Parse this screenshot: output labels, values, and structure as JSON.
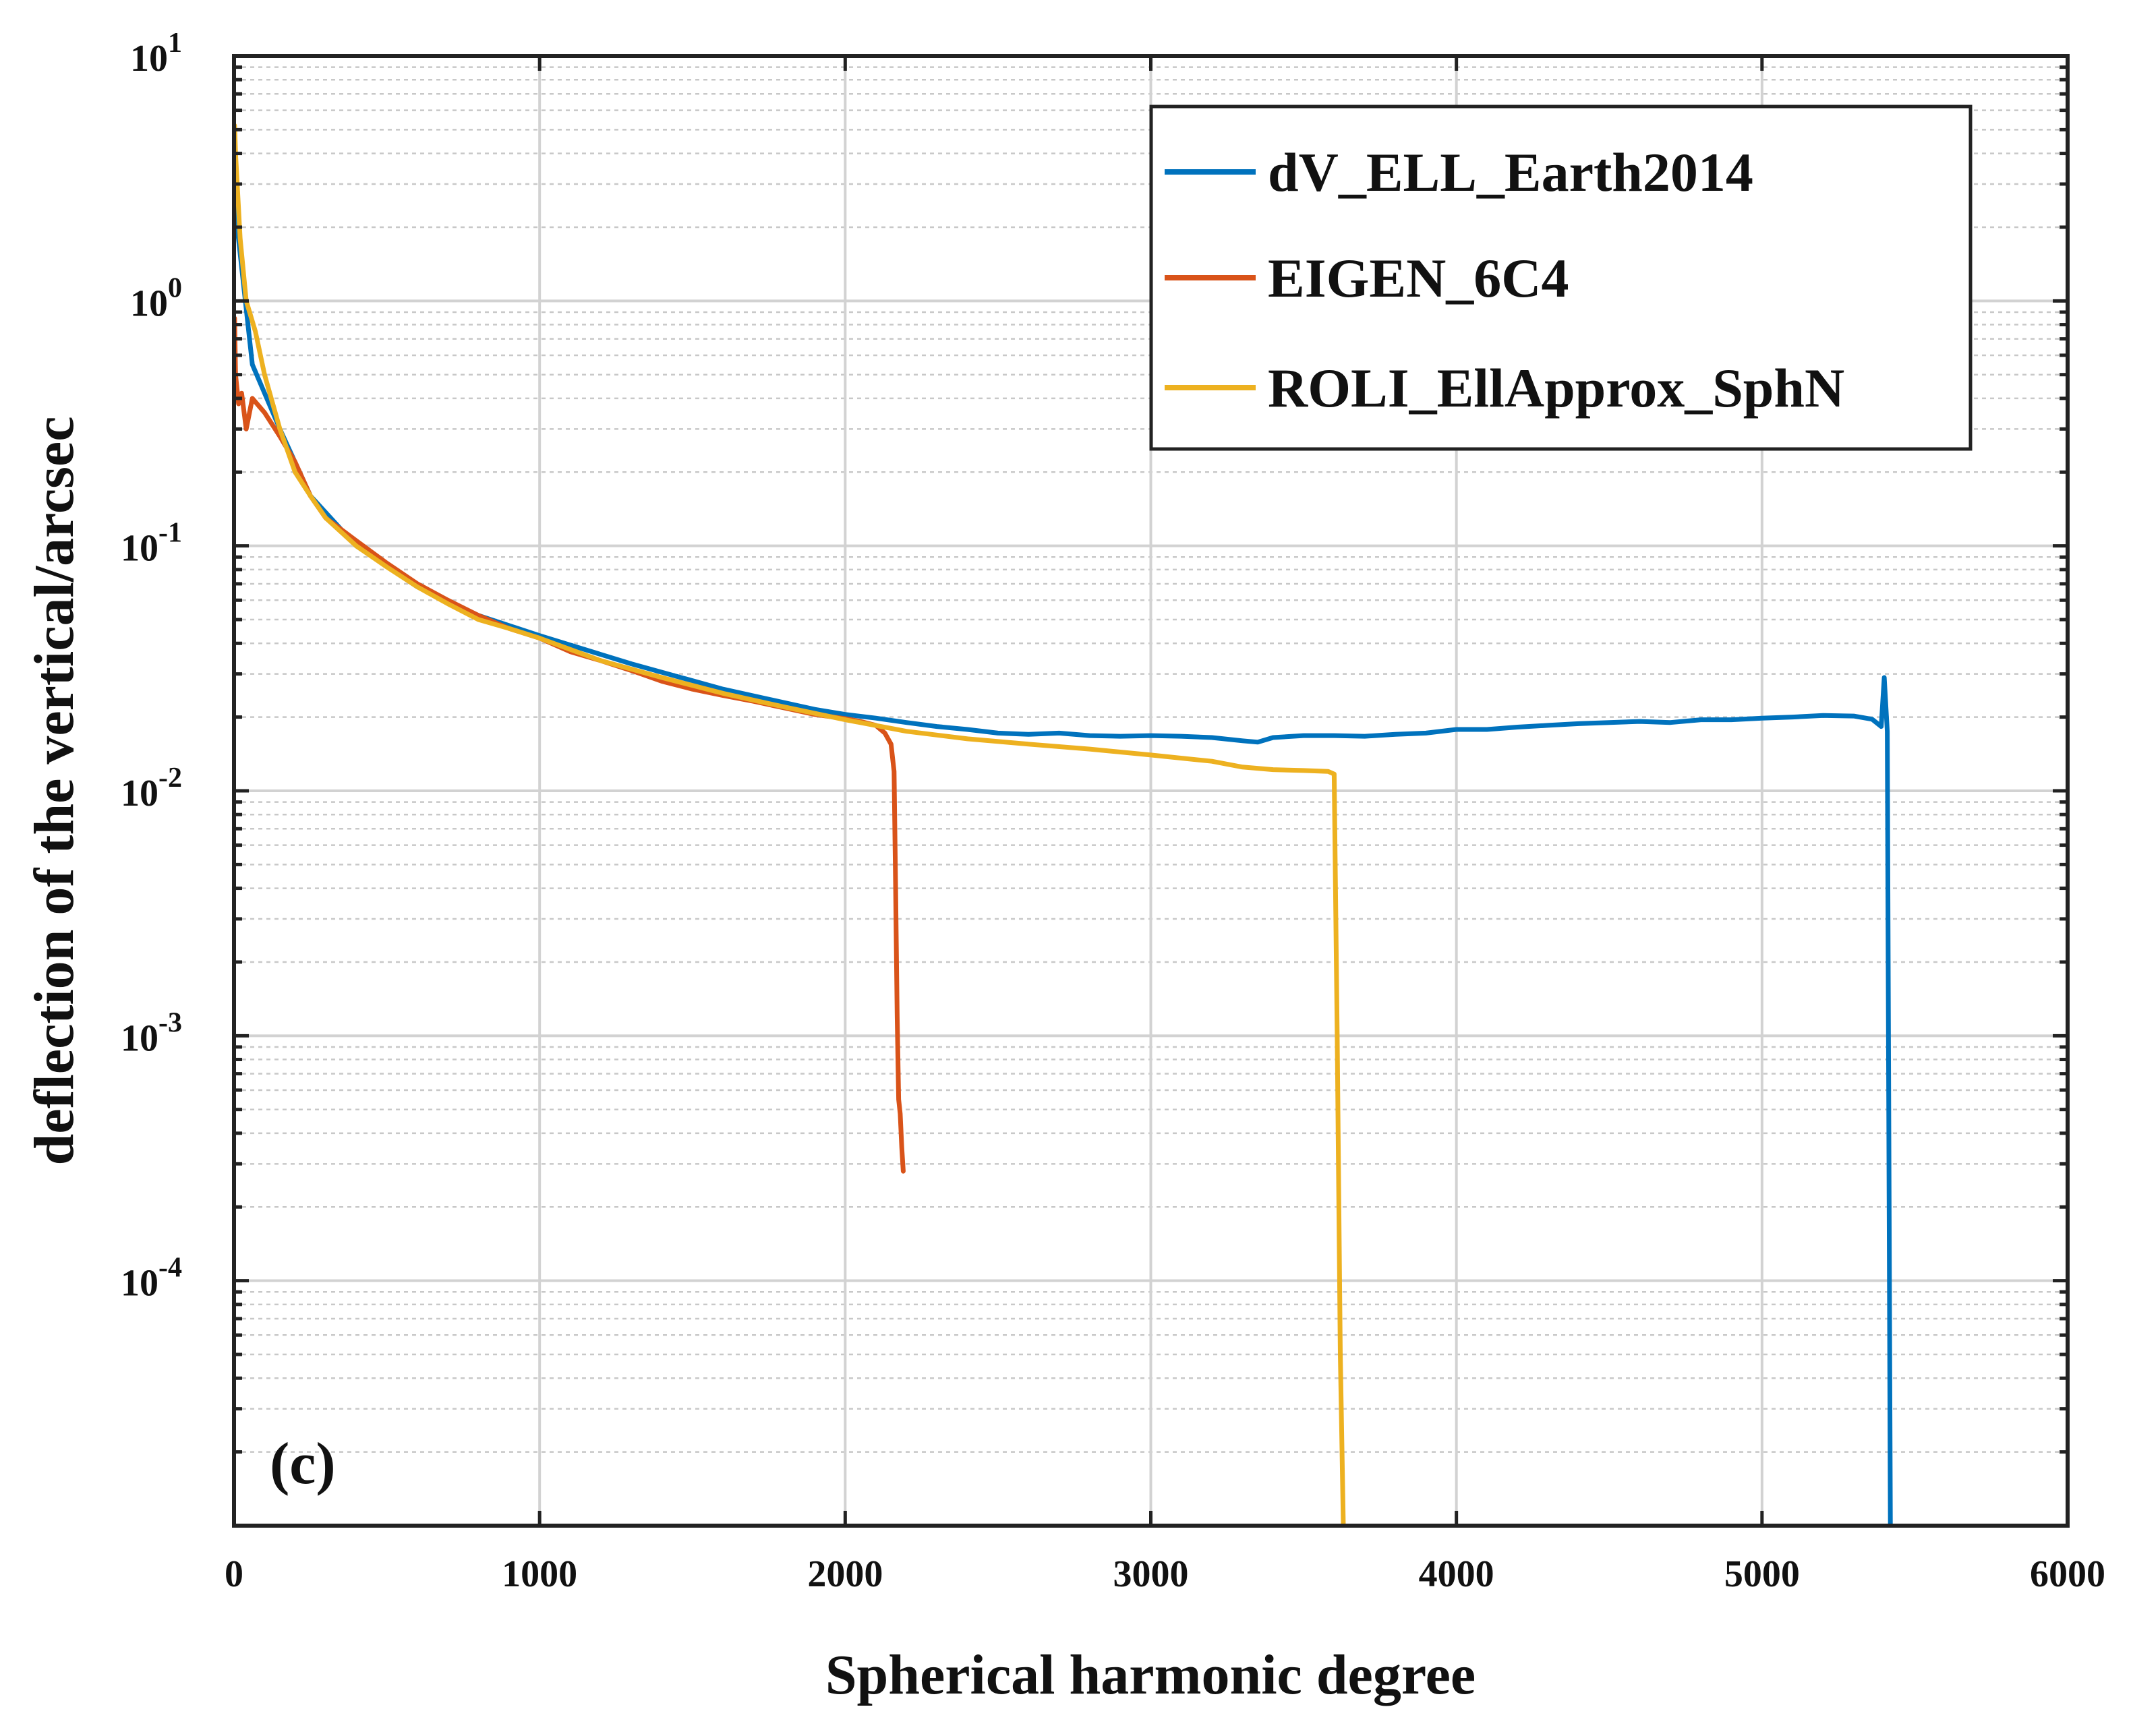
{
  "chart_data": {
    "type": "line",
    "title": "",
    "xlabel": "Spherical harmonic degree",
    "ylabel": "deflection of the vertical/arcsec",
    "xscale": "linear",
    "yscale": "log",
    "xlim": [
      0,
      6000
    ],
    "ylim": [
      1e-05,
      10
    ],
    "grid": true,
    "minor_grid": true,
    "legend_location": "top-right",
    "panel_label": "(c)",
    "x_ticks": [
      {
        "value": 0,
        "label": "0"
      },
      {
        "value": 1000,
        "label": "1000"
      },
      {
        "value": 2000,
        "label": "2000"
      },
      {
        "value": 3000,
        "label": "3000"
      },
      {
        "value": 4000,
        "label": "4000"
      },
      {
        "value": 5000,
        "label": "5000"
      },
      {
        "value": 6000,
        "label": "6000"
      }
    ],
    "y_ticks": [
      {
        "value": 10,
        "base": "10",
        "exp": "1"
      },
      {
        "value": 1,
        "base": "10",
        "exp": "0"
      },
      {
        "value": 0.1,
        "base": "10",
        "exp": "-1"
      },
      {
        "value": 0.01,
        "base": "10",
        "exp": "-2"
      },
      {
        "value": 0.001,
        "base": "10",
        "exp": "-3"
      },
      {
        "value": 0.0001,
        "base": "10",
        "exp": "-4"
      }
    ],
    "series": [
      {
        "name": "dV_ELL_Earth2014",
        "color": "#0072BD",
        "x": [
          2,
          60,
          150,
          250,
          400,
          600,
          800,
          1000,
          1300,
          1600,
          1900,
          2000,
          2100,
          2200,
          2300,
          2400,
          2500,
          2600,
          2700,
          2800,
          2900,
          3000,
          3100,
          3200,
          3300,
          3350,
          3400,
          3500,
          3600,
          3700,
          3800,
          3900,
          4000,
          4100,
          4200,
          4300,
          4400,
          4500,
          4600,
          4700,
          4800,
          4900,
          5000,
          5100,
          5200,
          5300,
          5360,
          5390,
          5400,
          5410,
          5420
        ],
        "y": [
          2.5,
          0.55,
          0.3,
          0.16,
          0.1,
          0.068,
          0.052,
          0.043,
          0.033,
          0.026,
          0.0215,
          0.0205,
          0.0198,
          0.019,
          0.0183,
          0.0178,
          0.0172,
          0.017,
          0.0172,
          0.0168,
          0.0167,
          0.0168,
          0.0167,
          0.0165,
          0.016,
          0.0158,
          0.0165,
          0.0168,
          0.0168,
          0.0167,
          0.017,
          0.0172,
          0.0178,
          0.0178,
          0.0182,
          0.0185,
          0.0188,
          0.019,
          0.0192,
          0.019,
          0.0195,
          0.0195,
          0.0198,
          0.02,
          0.0203,
          0.0202,
          0.0196,
          0.0183,
          0.029,
          0.0175,
          1e-05
        ]
      },
      {
        "name": "EIGEN_6C4",
        "color": "#D95319",
        "x": [
          2,
          5,
          15,
          25,
          40,
          60,
          100,
          150,
          200,
          250,
          300,
          400,
          500,
          600,
          700,
          800,
          900,
          1000,
          1100,
          1200,
          1300,
          1400,
          1500,
          1600,
          1700,
          1800,
          1900,
          2000,
          2050,
          2100,
          2130,
          2150,
          2160,
          2165,
          2170,
          2175,
          2180,
          2185,
          2190
        ],
        "y": [
          0.85,
          0.5,
          0.38,
          0.42,
          0.3,
          0.4,
          0.35,
          0.28,
          0.22,
          0.16,
          0.13,
          0.105,
          0.085,
          0.07,
          0.06,
          0.052,
          0.046,
          0.042,
          0.037,
          0.034,
          0.031,
          0.028,
          0.026,
          0.0245,
          0.0232,
          0.0218,
          0.0205,
          0.0197,
          0.0192,
          0.0185,
          0.0172,
          0.0155,
          0.012,
          0.004,
          0.0012,
          0.00055,
          0.00048,
          0.00035,
          0.00028
        ]
      },
      {
        "name": "ROLI_EllApprox_SphN",
        "color": "#EDB120",
        "x": [
          2,
          5,
          20,
          40,
          70,
          100,
          150,
          200,
          250,
          300,
          400,
          500,
          600,
          700,
          800,
          900,
          1000,
          1200,
          1400,
          1600,
          1800,
          2000,
          2200,
          2400,
          2600,
          2800,
          3000,
          3200,
          3300,
          3400,
          3500,
          3580,
          3600,
          3610,
          3620,
          3630
        ],
        "y": [
          5.2,
          4.0,
          1.8,
          1.0,
          0.75,
          0.5,
          0.3,
          0.2,
          0.16,
          0.13,
          0.1,
          0.082,
          0.068,
          0.058,
          0.05,
          0.046,
          0.042,
          0.034,
          0.029,
          0.025,
          0.022,
          0.0195,
          0.0175,
          0.0163,
          0.0155,
          0.0148,
          0.014,
          0.0132,
          0.0125,
          0.0122,
          0.0121,
          0.012,
          0.0117,
          0.001,
          5e-05,
          1e-05
        ]
      }
    ]
  }
}
